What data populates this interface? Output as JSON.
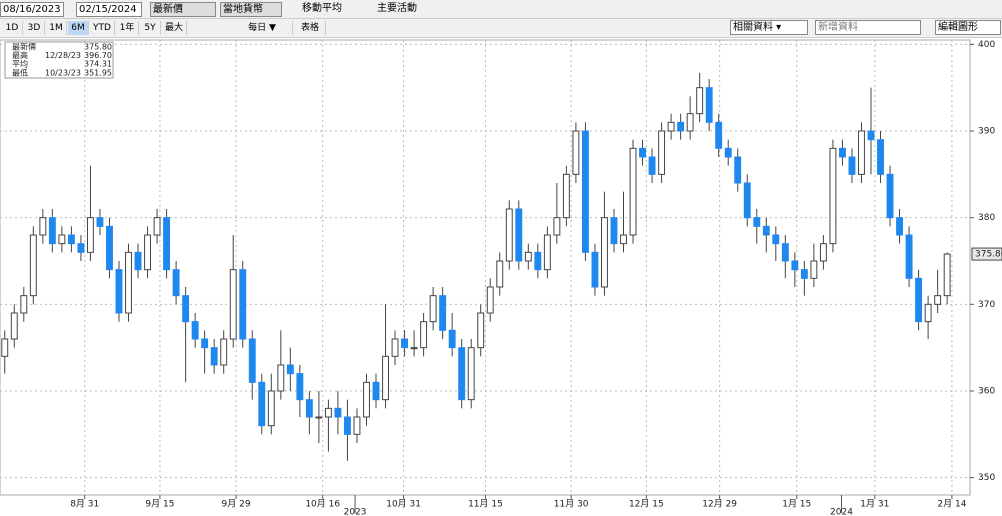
{
  "toolbar": {
    "start_date": "08/16/2023",
    "end_date": "02/15/2024",
    "price_field": "最新價",
    "currency": "當地貨幣",
    "moving_average": "移動平均",
    "key_events": "主要活動",
    "periods": [
      "1D",
      "3D",
      "1M",
      "6M",
      "YTD",
      "1年",
      "5Y",
      "最大"
    ],
    "selected_period": 3,
    "frequency": "每日 ▼",
    "table": "表格",
    "related": "相關資料 ▾",
    "add_data": "新增資料",
    "edit_chart": "編輯圖形"
  },
  "chart_data": {
    "type": "candlestick",
    "legend": [
      {
        "label": "最新價",
        "date": null,
        "value": "375.80"
      },
      {
        "label": "最高",
        "date": "12/28/23",
        "value": "396.70"
      },
      {
        "label": "平均",
        "date": null,
        "value": "374.31"
      },
      {
        "label": "最低",
        "date": "10/23/23",
        "value": "351.95"
      }
    ],
    "last": {
      "value": 375.8,
      "label": "375.80"
    },
    "up_color": "#ffffff",
    "down_color": "#1e88f0",
    "grid": true,
    "open": [
      364,
      366,
      369,
      371,
      378,
      380,
      377,
      378,
      377,
      376,
      380,
      379,
      374,
      369,
      376,
      374,
      378,
      380,
      374,
      371,
      368,
      366,
      365,
      363,
      366,
      374,
      366,
      361,
      356,
      360,
      363,
      362,
      359,
      357,
      357,
      358,
      357,
      355,
      357,
      361,
      359,
      364,
      366,
      365,
      365,
      368,
      371,
      367,
      365,
      359,
      365,
      369,
      372,
      375,
      381,
      375,
      376,
      374,
      378,
      380,
      385,
      390,
      376,
      372,
      380,
      377,
      378,
      388,
      387,
      385,
      390,
      391,
      390,
      392,
      395,
      391,
      388,
      387,
      384,
      380,
      379,
      378,
      377,
      375,
      374,
      373,
      375,
      377,
      388,
      387,
      385,
      390,
      389,
      385,
      380,
      378,
      373,
      368,
      370,
      371
    ],
    "high": [
      367,
      370,
      372,
      379,
      381,
      381,
      379,
      379,
      378,
      386,
      381,
      380,
      375,
      377,
      377,
      379,
      381,
      381,
      375,
      372,
      369,
      367,
      366,
      367,
      378,
      375,
      367,
      362,
      362,
      367,
      365,
      363,
      360,
      360,
      359,
      360,
      359,
      358,
      362,
      362,
      370,
      367,
      367,
      367,
      369,
      372,
      372,
      369,
      366,
      366,
      370,
      373,
      376,
      382,
      382,
      377,
      377,
      379,
      384,
      386,
      391,
      391,
      377,
      383,
      381,
      383,
      389,
      389,
      388,
      391,
      392,
      392,
      394,
      396.7,
      396,
      392,
      389,
      388,
      385,
      381,
      380,
      379,
      378,
      376,
      375,
      377,
      378,
      389,
      389,
      388,
      391,
      395,
      390,
      386,
      381,
      379,
      374,
      371,
      374,
      376
    ],
    "low": [
      362,
      365,
      368,
      370,
      377,
      376,
      376,
      376,
      375,
      375,
      378,
      373,
      368,
      368,
      373,
      373,
      377,
      373,
      370,
      361,
      365,
      362,
      362,
      362,
      365,
      365,
      359,
      355,
      355,
      359,
      360,
      357,
      355,
      354,
      353,
      355,
      351.95,
      354,
      356,
      358,
      358,
      363,
      364,
      364,
      364,
      367,
      366,
      364,
      358,
      358,
      364,
      368,
      371,
      374,
      374,
      374,
      373,
      373,
      377,
      379,
      384,
      375,
      371,
      371,
      376,
      376,
      377,
      386,
      384,
      384,
      389,
      389,
      389,
      391,
      390,
      387,
      386,
      383,
      379,
      377,
      376,
      375,
      373,
      372,
      371,
      372,
      374,
      376,
      386,
      384,
      384,
      385,
      384,
      379,
      377,
      372,
      367,
      366,
      369,
      370
    ],
    "close": [
      366,
      369,
      371,
      378,
      380,
      377,
      378,
      377,
      376,
      380,
      379,
      374,
      369,
      376,
      374,
      378,
      380,
      374,
      371,
      368,
      366,
      365,
      363,
      366,
      374,
      366,
      361,
      356,
      360,
      363,
      362,
      359,
      357,
      357,
      358,
      357,
      355,
      357,
      361,
      359,
      364,
      366,
      365,
      365,
      368,
      371,
      367,
      365,
      359,
      365,
      369,
      372,
      375,
      381,
      375,
      376,
      374,
      378,
      380,
      385,
      390,
      376,
      372,
      380,
      377,
      378,
      388,
      387,
      385,
      390,
      391,
      390,
      392,
      395,
      391,
      388,
      387,
      384,
      380,
      379,
      378,
      377,
      375,
      374,
      373,
      375,
      377,
      388,
      387,
      385,
      390,
      389,
      385,
      380,
      378,
      373,
      368,
      370,
      371,
      375.8
    ],
    "xlim": [
      -0.5,
      101.4
    ],
    "xticks": [
      {
        "value": 8.4,
        "label": "8月 31"
      },
      {
        "value": 16.3,
        "label": "9月 15"
      },
      {
        "value": 24.3,
        "label": "9月 29"
      },
      {
        "value": 33.4,
        "label": "10月 16"
      },
      {
        "value": 41.9,
        "label": "10月 31"
      },
      {
        "value": 50.5,
        "label": "11月 15"
      },
      {
        "value": 59.5,
        "label": "11月 30"
      },
      {
        "value": 67.4,
        "label": "12月 15"
      },
      {
        "value": 75.1,
        "label": "12月 29"
      },
      {
        "value": 83.2,
        "label": "1月 15"
      },
      {
        "value": 91.4,
        "label": "1月 31"
      },
      {
        "value": 99.5,
        "label": "2月 14"
      }
    ],
    "year_ticks": [
      {
        "value": 36.8,
        "label": "2023"
      },
      {
        "value": 87.9,
        "label": "2024"
      }
    ],
    "ylim": [
      348,
      400.5
    ],
    "yticks": [
      350,
      360,
      370,
      380,
      390,
      400
    ]
  }
}
